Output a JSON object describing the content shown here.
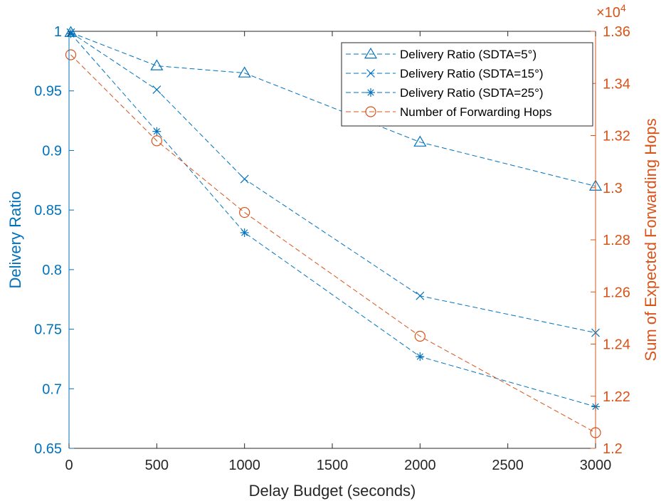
{
  "chart_data": {
    "type": "line",
    "xlabel": "Delay Budget (seconds)",
    "ylabel_left": "Delivery Ratio",
    "ylabel_right": "Sum of Expected Forwarding Hops",
    "right_axis_multiplier": "×10",
    "right_axis_exponent": "4",
    "xlim": [
      0,
      3000
    ],
    "ylim_left": [
      0.65,
      1.0
    ],
    "ylim_right": [
      1.2,
      1.36
    ],
    "x_ticks": [
      "0",
      "500",
      "1000",
      "1500",
      "2000",
      "2500",
      "3000"
    ],
    "y_left_ticks": [
      "0.65",
      "0.7",
      "0.75",
      "0.8",
      "0.85",
      "0.9",
      "0.95",
      "1"
    ],
    "y_right_ticks": [
      "1.2",
      "1.22",
      "1.24",
      "1.26",
      "1.28",
      "1.3",
      "1.32",
      "1.34",
      "1.36"
    ],
    "legend_position": "top-right",
    "colors": {
      "left": "#0072BD",
      "right": "#D95319",
      "axis": "#262626"
    },
    "series": [
      {
        "name": "Delivery Ratio (SDTA=5°)",
        "axis": "left",
        "marker": "triangle",
        "x": [
          10,
          500,
          1000,
          2000,
          3000
        ],
        "y": [
          0.999,
          0.971,
          0.965,
          0.907,
          0.87
        ]
      },
      {
        "name": "Delivery Ratio (SDTA=15°)",
        "axis": "left",
        "marker": "x",
        "x": [
          10,
          500,
          1000,
          2000,
          3000
        ],
        "y": [
          0.999,
          0.951,
          0.876,
          0.778,
          0.747
        ]
      },
      {
        "name": "Delivery Ratio (SDTA=25°)",
        "axis": "left",
        "marker": "asterisk",
        "x": [
          10,
          500,
          1000,
          2000,
          3000
        ],
        "y": [
          0.998,
          0.916,
          0.831,
          0.727,
          0.685
        ]
      },
      {
        "name": "Number of Forwarding Hops",
        "axis": "right",
        "marker": "circle",
        "x": [
          10,
          500,
          1000,
          2000,
          3000
        ],
        "y": [
          1.351,
          1.318,
          1.2905,
          1.243,
          1.206
        ]
      }
    ]
  }
}
